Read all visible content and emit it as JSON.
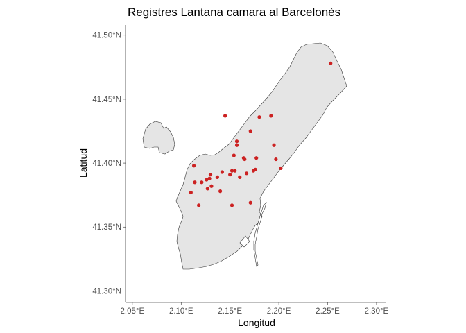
{
  "chart_data": {
    "type": "scatter",
    "title": "Registres Lantana camara al Barcelonès",
    "xlabel": "Longitud",
    "ylabel": "Latitud",
    "xlim": [
      2.043,
      2.31
    ],
    "ylim": [
      41.291,
      41.508
    ],
    "x_ticks": [
      {
        "value": 2.05,
        "label": "2.05°E"
      },
      {
        "value": 2.1,
        "label": "2.10°E"
      },
      {
        "value": 2.15,
        "label": "2.15°E"
      },
      {
        "value": 2.2,
        "label": "2.20°E"
      },
      {
        "value": 2.25,
        "label": "2.25°E"
      },
      {
        "value": 2.3,
        "label": "2.30°E"
      }
    ],
    "y_ticks": [
      {
        "value": 41.3,
        "label": "41.30°N"
      },
      {
        "value": 41.35,
        "label": "41.35°N"
      },
      {
        "value": 41.4,
        "label": "41.40°N"
      },
      {
        "value": 41.45,
        "label": "41.45°N"
      },
      {
        "value": 41.5,
        "label": "41.50°N"
      }
    ],
    "grid": false,
    "point_color": "#cc2222",
    "land_fill": "#e5e5e5",
    "land_stroke": "#333333",
    "points": [
      {
        "x": 2.145,
        "y": 41.437
      },
      {
        "x": 2.18,
        "y": 41.436
      },
      {
        "x": 2.192,
        "y": 41.437
      },
      {
        "x": 2.253,
        "y": 41.478
      },
      {
        "x": 2.171,
        "y": 41.425
      },
      {
        "x": 2.157,
        "y": 41.417
      },
      {
        "x": 2.157,
        "y": 41.414
      },
      {
        "x": 2.195,
        "y": 41.414
      },
      {
        "x": 2.154,
        "y": 41.406
      },
      {
        "x": 2.164,
        "y": 41.404
      },
      {
        "x": 2.165,
        "y": 41.403
      },
      {
        "x": 2.177,
        "y": 41.404
      },
      {
        "x": 2.197,
        "y": 41.403
      },
      {
        "x": 2.113,
        "y": 41.398
      },
      {
        "x": 2.202,
        "y": 41.396
      },
      {
        "x": 2.176,
        "y": 41.395
      },
      {
        "x": 2.174,
        "y": 41.394
      },
      {
        "x": 2.152,
        "y": 41.394
      },
      {
        "x": 2.155,
        "y": 41.394
      },
      {
        "x": 2.142,
        "y": 41.393
      },
      {
        "x": 2.13,
        "y": 41.391
      },
      {
        "x": 2.15,
        "y": 41.391
      },
      {
        "x": 2.167,
        "y": 41.392
      },
      {
        "x": 2.137,
        "y": 41.389
      },
      {
        "x": 2.129,
        "y": 41.388
      },
      {
        "x": 2.126,
        "y": 41.387
      },
      {
        "x": 2.16,
        "y": 41.389
      },
      {
        "x": 2.114,
        "y": 41.385
      },
      {
        "x": 2.121,
        "y": 41.385
      },
      {
        "x": 2.131,
        "y": 41.382
      },
      {
        "x": 2.127,
        "y": 41.38
      },
      {
        "x": 2.14,
        "y": 41.378
      },
      {
        "x": 2.11,
        "y": 41.377
      },
      {
        "x": 2.171,
        "y": 41.369
      },
      {
        "x": 2.118,
        "y": 41.367
      },
      {
        "x": 2.152,
        "y": 41.367
      }
    ]
  }
}
